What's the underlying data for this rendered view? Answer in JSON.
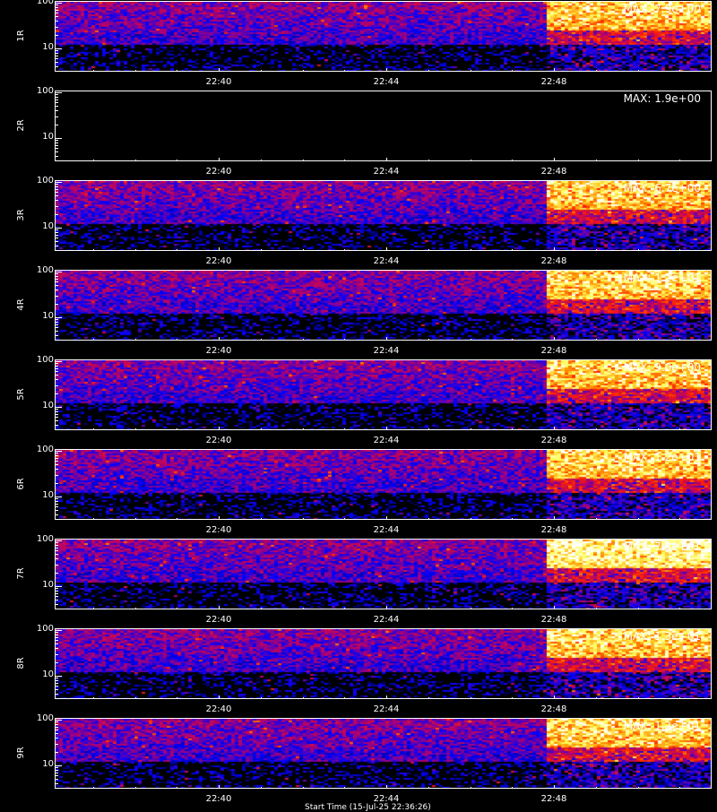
{
  "chart_data": {
    "type": "heatmap",
    "colormap": [
      "#000000",
      "#0000ff",
      "#b00070",
      "#ff2000",
      "#ff9000",
      "#ffff60",
      "#ffffff"
    ],
    "xticks": [
      "22:40",
      "22:44",
      "22:48"
    ],
    "yticks": [
      "100",
      "10"
    ],
    "yscale": "log",
    "panels": [
      {
        "label": "1R",
        "max_text": "MAX: 7.9e+00",
        "max": 7.9,
        "empty": false
      },
      {
        "label": "2R",
        "max_text": "MAX: 1.9e+00",
        "max": 1.9,
        "empty": true
      },
      {
        "label": "3R",
        "max_text": "MAX: 6.7e+00",
        "max": 6.7,
        "empty": false
      },
      {
        "label": "4R",
        "max_text": "MAX: 1.2e+01",
        "max": 12,
        "empty": false
      },
      {
        "label": "5R",
        "max_text": "MAX: 9.0e+00",
        "max": 9.0,
        "empty": false
      },
      {
        "label": "6R",
        "max_text": "MAX: 1.2e+01",
        "max": 12,
        "empty": false
      },
      {
        "label": "7R",
        "max_text": "MAX: 7.5e+01",
        "max": 75,
        "empty": false
      },
      {
        "label": "8R",
        "max_text": "MAX: 1.3e+01",
        "max": 13,
        "empty": false
      },
      {
        "label": "9R",
        "max_text": "MAX: 1.2e+01",
        "max": 12,
        "empty": false
      }
    ]
  },
  "footer": "Start Time (15-Jul-25 22:36:26)"
}
